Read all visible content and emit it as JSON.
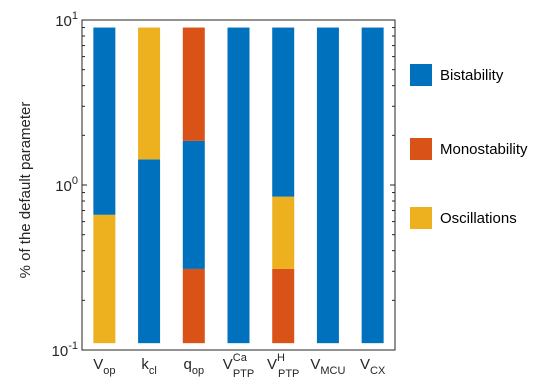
{
  "chart_data": {
    "type": "bar",
    "stacked": true,
    "y_scale": "log",
    "ylabel": "% of the default parameter",
    "ylim": [
      0.1,
      10
    ],
    "y_ticks": [
      {
        "value": 0.1,
        "base": "10",
        "exp": "-1"
      },
      {
        "value": 1,
        "base": "10",
        "exp": "0"
      },
      {
        "value": 10,
        "base": "10",
        "exp": "1"
      }
    ],
    "bar_range": [
      0.11,
      9.0
    ],
    "grid": false,
    "legend_position": "right",
    "categories": [
      {
        "main": "V",
        "sub": "op",
        "sup": ""
      },
      {
        "main": "k",
        "sub": "cl",
        "sup": ""
      },
      {
        "main": "q",
        "sub": "op",
        "sup": ""
      },
      {
        "main": "V",
        "sub": "PTP",
        "sup": "Ca"
      },
      {
        "main": "V",
        "sub": "PTP",
        "sup": "H"
      },
      {
        "main": "V",
        "sub": "MCU",
        "sup": ""
      },
      {
        "main": "V",
        "sub": "CX",
        "sup": ""
      }
    ],
    "series": [
      {
        "name": "Bistability",
        "color": "#0072BD"
      },
      {
        "name": "Monostability",
        "color": "#D95319"
      },
      {
        "name": "Oscillations",
        "color": "#EDB120"
      }
    ],
    "bars": [
      {
        "segments": [
          {
            "series": "Oscillations",
            "from": 0.11,
            "to": 0.66
          },
          {
            "series": "Bistability",
            "from": 0.66,
            "to": 9.0
          }
        ]
      },
      {
        "segments": [
          {
            "series": "Bistability",
            "from": 0.11,
            "to": 1.43
          },
          {
            "series": "Oscillations",
            "from": 1.43,
            "to": 9.0
          }
        ]
      },
      {
        "segments": [
          {
            "series": "Monostability",
            "from": 0.11,
            "to": 0.31
          },
          {
            "series": "Bistability",
            "from": 0.31,
            "to": 1.85
          },
          {
            "series": "Monostability",
            "from": 1.85,
            "to": 9.0
          }
        ]
      },
      {
        "segments": [
          {
            "series": "Bistability",
            "from": 0.11,
            "to": 9.0
          }
        ]
      },
      {
        "segments": [
          {
            "series": "Monostability",
            "from": 0.11,
            "to": 0.31
          },
          {
            "series": "Oscillations",
            "from": 0.31,
            "to": 0.85
          },
          {
            "series": "Bistability",
            "from": 0.85,
            "to": 9.0
          }
        ]
      },
      {
        "segments": [
          {
            "series": "Bistability",
            "from": 0.11,
            "to": 9.0
          }
        ]
      },
      {
        "segments": [
          {
            "series": "Bistability",
            "from": 0.11,
            "to": 9.0
          }
        ]
      }
    ]
  }
}
